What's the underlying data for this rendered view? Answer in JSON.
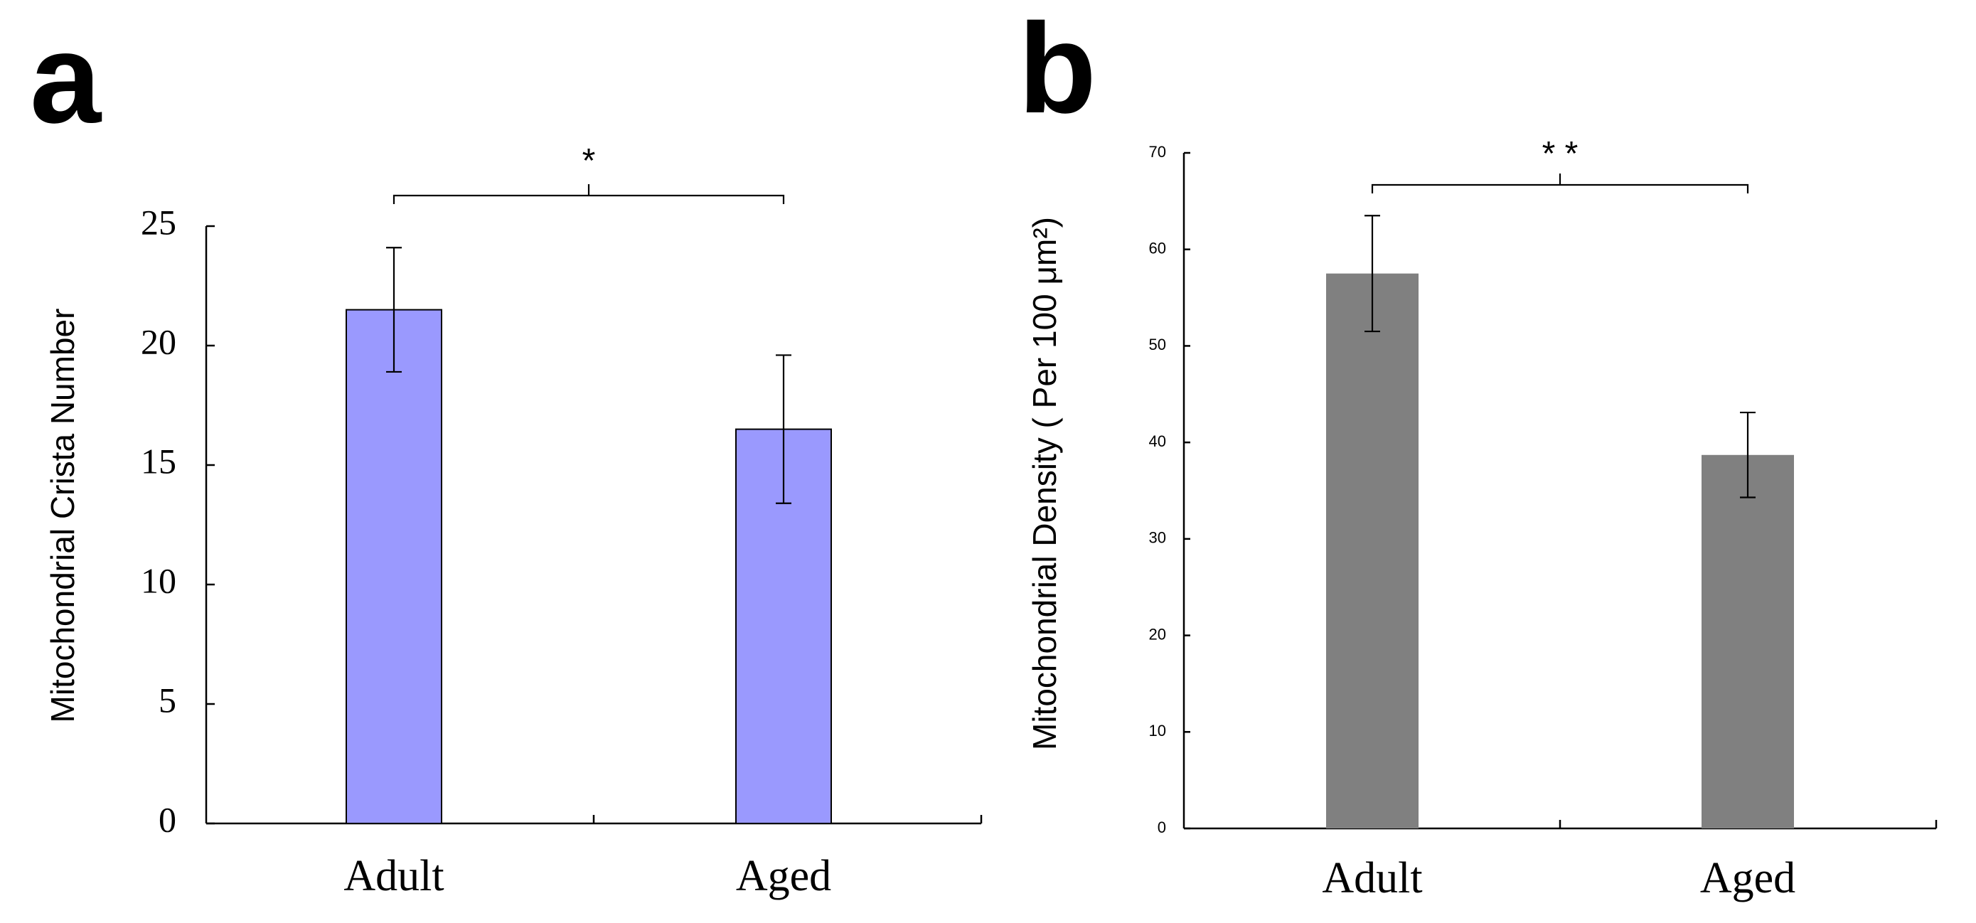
{
  "chart_data": [
    {
      "panel": "a",
      "type": "bar",
      "categories": [
        "Adult",
        "Aged"
      ],
      "values": [
        21.5,
        16.5
      ],
      "errors": [
        2.6,
        3.1
      ],
      "ylabel": "Mitochondrial Crista Number",
      "xlabel": "",
      "ylim": [
        0,
        25
      ],
      "yticks": [
        "0",
        "5",
        "10",
        "15",
        "20",
        "25"
      ],
      "significance": "*",
      "grid": false,
      "bar_color": "#9a99fe"
    },
    {
      "panel": "b",
      "type": "bar",
      "categories": [
        "Adult",
        "Aged"
      ],
      "values": [
        57.5,
        38.7
      ],
      "errors": [
        6.0,
        4.4
      ],
      "ylabel": "Mitochondrial Density ( Per 100 μm²)",
      "xlabel": "",
      "ylim": [
        0,
        70
      ],
      "yticks": [
        "0",
        "10",
        "20",
        "30",
        "40",
        "50",
        "60",
        "70"
      ],
      "significance": "* *",
      "grid": false,
      "bar_color": "#808080"
    }
  ]
}
